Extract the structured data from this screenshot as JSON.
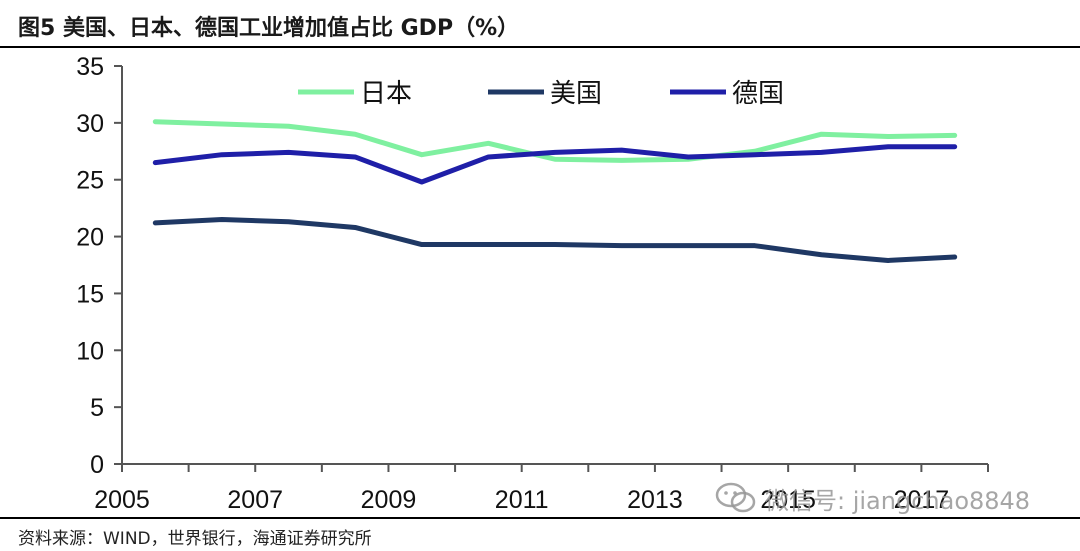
{
  "header": {
    "title": "图5  美国、日本、德国工业增加值占比 GDP（%）"
  },
  "footer": {
    "source": "资料来源：WIND，世界银行，海通证券研究所"
  },
  "watermark": {
    "text": "微信号: jiangchao8848",
    "icon": "wechat-icon"
  },
  "chart_data": {
    "type": "line",
    "title": "图5  美国、日本、德国工业增加值占比 GDP（%）",
    "xlabel": "",
    "ylabel": "",
    "x": [
      2005,
      2006,
      2007,
      2008,
      2009,
      2010,
      2011,
      2012,
      2013,
      2014,
      2015,
      2016,
      2017
    ],
    "x_tick_labels": [
      "2005",
      "2007",
      "2009",
      "2011",
      "2013",
      "2015",
      "2017"
    ],
    "y_ticks": [
      "0",
      "5",
      "10",
      "15",
      "20",
      "25",
      "30",
      "35"
    ],
    "ylim": [
      0,
      35
    ],
    "grid": false,
    "legend": "top",
    "series": [
      {
        "name": "日本",
        "color": "#7ff0a0",
        "values": [
          30.1,
          29.9,
          29.7,
          29.0,
          27.2,
          28.2,
          26.8,
          26.7,
          26.8,
          27.5,
          29.0,
          28.8,
          28.9
        ]
      },
      {
        "name": "美国",
        "color": "#1f3864",
        "values": [
          21.2,
          21.5,
          21.3,
          20.8,
          19.3,
          19.3,
          19.3,
          19.2,
          19.2,
          19.2,
          18.4,
          17.9,
          18.2
        ]
      },
      {
        "name": "德国",
        "color": "#1f1fa8",
        "values": [
          26.5,
          27.2,
          27.4,
          27.0,
          24.8,
          27.0,
          27.4,
          27.6,
          27.0,
          27.2,
          27.4,
          27.9,
          27.9
        ]
      }
    ]
  }
}
